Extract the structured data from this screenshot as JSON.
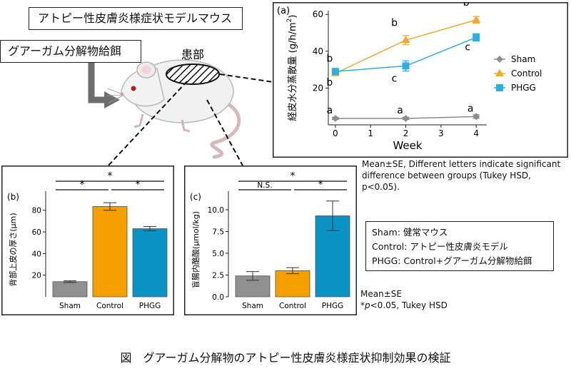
{
  "header": {
    "model_title": "アトピー性皮膚炎様症状モデルマウス",
    "food_label": "グアーガム分解物給餌",
    "lesion_label": "患部"
  },
  "notes": {
    "panel_a_note_1": "Mean±SE, Different letters indicate significant",
    "panel_a_note_2": "difference between groups (Tukey HSD, p<0.05).",
    "bottom_note_1": "Mean±SE",
    "bottom_note_2_prefix": "*",
    "bottom_note_2_p": "p",
    "bottom_note_2_rest": "<0.05, Tukey HSD"
  },
  "group_definitions": [
    "Sham: 健常マウス",
    "Control: アトピー性皮膚炎モデル",
    "PHGG: Control+グアーガム分解物給餌"
  ],
  "caption": "図　グアーガム分解物のアトピー性皮膚炎様症状抑制効果の検証",
  "colors": {
    "sham": "#909090",
    "control": "#f5a000",
    "phgg": "#0b93c6",
    "line_sham": "#8c8c8c",
    "line_control": "#f5a623",
    "line_phgg": "#2ab0e0"
  },
  "chart_data": [
    {
      "panel": "(a)",
      "type": "line",
      "xlabel": "Week",
      "ylabel_main": "経皮水分蒸散量 (g/h/m",
      "ylabel_sup": "2",
      "ylabel_end": ")",
      "x": [
        0,
        2,
        4
      ],
      "xticks": [
        "0",
        "1",
        "2",
        "3",
        "4"
      ],
      "xlim": [
        -0.2,
        4.3
      ],
      "ylim": [
        0,
        62
      ],
      "yticks": [
        "20",
        "40",
        "60"
      ],
      "series": [
        {
          "name": "Sham",
          "values": [
            3.5,
            3.5,
            4.5
          ],
          "errors": [
            0.6,
            0.6,
            1.0
          ],
          "marker": "diamond",
          "letters": [
            "a",
            "a",
            "a"
          ]
        },
        {
          "name": "Control",
          "values": [
            28,
            46,
            57
          ],
          "errors": [
            1.2,
            2.5,
            1.8
          ],
          "marker": "triangle",
          "letters": [
            "b",
            "b",
            "b"
          ]
        },
        {
          "name": "PHGG",
          "values": [
            29,
            32,
            47.5
          ],
          "errors": [
            1.2,
            2.8,
            2.0
          ],
          "marker": "square",
          "letters": [
            "b",
            "c",
            "c"
          ]
        }
      ]
    },
    {
      "panel": "(b)",
      "type": "bar",
      "ylabel": "背部上皮の厚さ(μm)",
      "categories": [
        "Sham",
        "Control",
        "PHGG"
      ],
      "values": [
        14,
        83.5,
        63
      ],
      "errors": [
        0.8,
        3.5,
        2.0
      ],
      "ylim": [
        0,
        95
      ],
      "yticks": [
        "20",
        "40",
        "60",
        "80"
      ],
      "significance": [
        {
          "from": 0,
          "to": 1,
          "label": "*"
        },
        {
          "from": 1,
          "to": 2,
          "label": "*"
        },
        {
          "from": 0,
          "to": 2,
          "label": "*"
        }
      ]
    },
    {
      "panel": "(c)",
      "type": "bar",
      "ylabel": "盲腸内酪酸(μmol/kg)",
      "categories": [
        "Sham",
        "Control",
        "PHGG"
      ],
      "values": [
        2.4,
        3.0,
        9.3
      ],
      "errors": [
        0.5,
        0.35,
        1.7
      ],
      "ylim": [
        0,
        11.8
      ],
      "yticks": [
        "0.0",
        "2.5",
        "5.0",
        "7.5",
        "10.0"
      ],
      "significance": [
        {
          "from": 0,
          "to": 1,
          "label": "N.S."
        },
        {
          "from": 1,
          "to": 2,
          "label": "*"
        },
        {
          "from": 0,
          "to": 2,
          "label": "*"
        }
      ]
    }
  ]
}
